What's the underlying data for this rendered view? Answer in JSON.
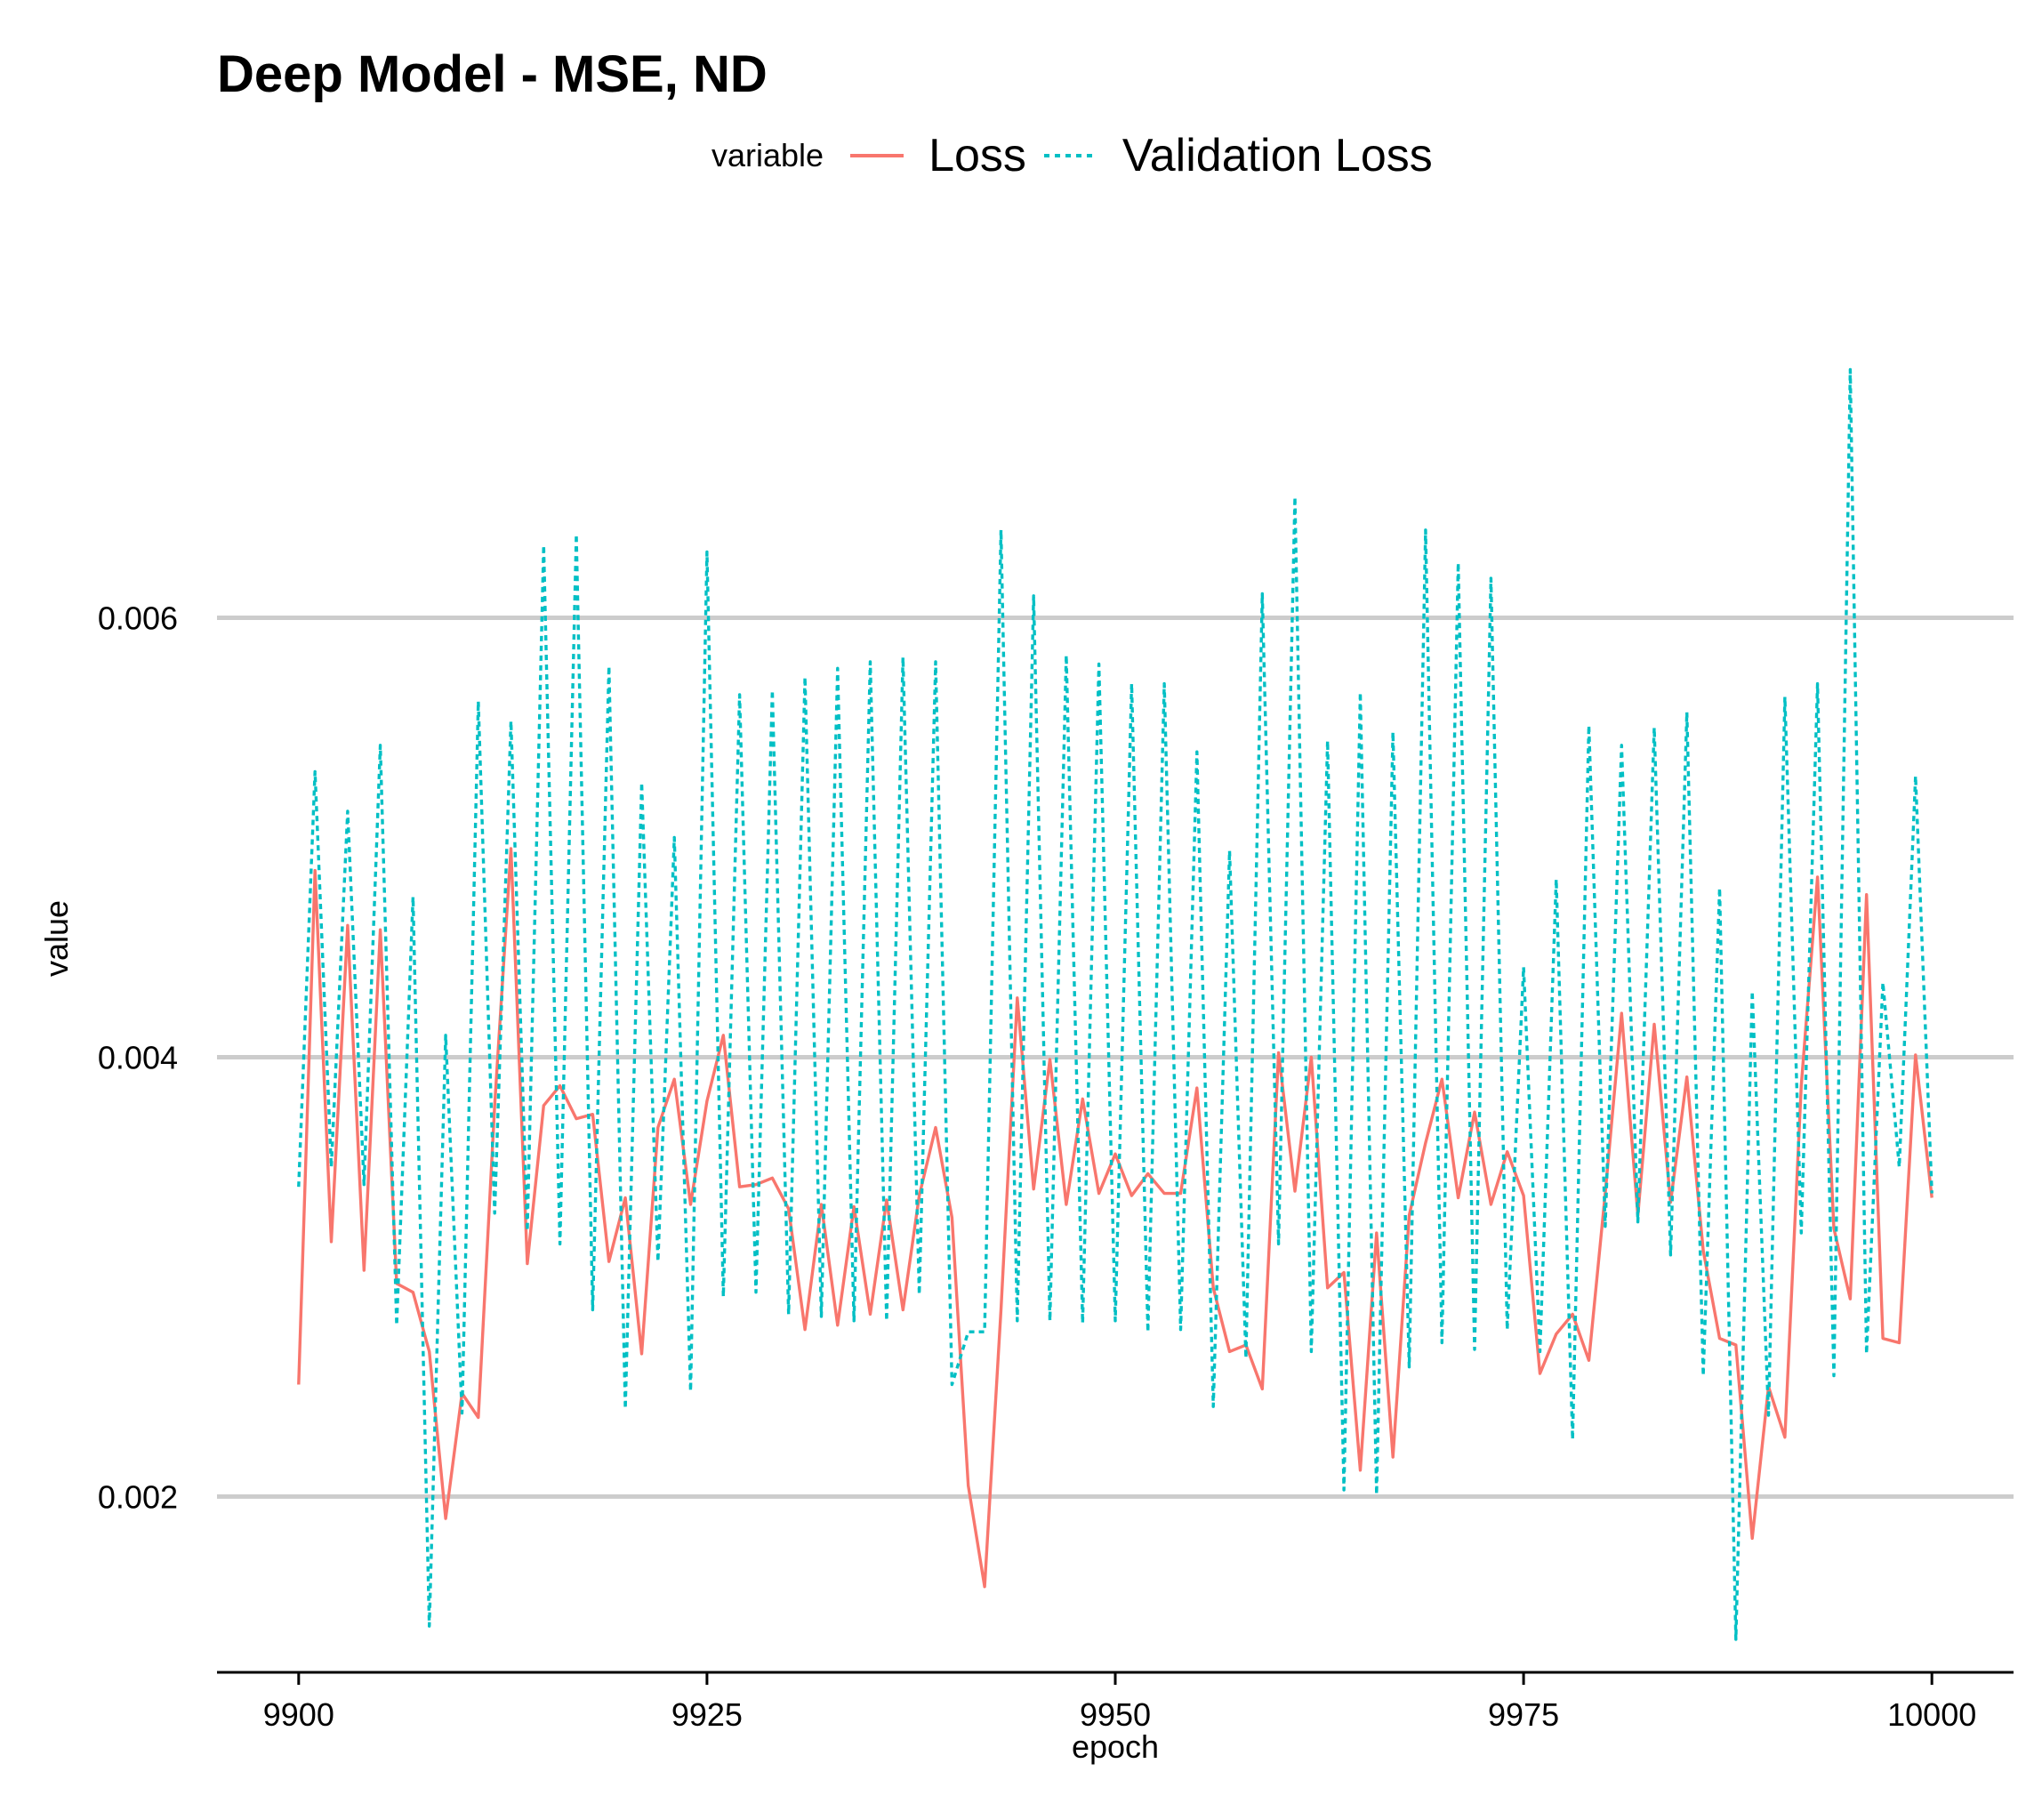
{
  "chart_data": {
    "type": "line",
    "title": "Deep Model - MSE, ND",
    "xlabel": "epoch",
    "ylabel": "value",
    "xlim": [
      9895,
      10005
    ],
    "ylim": [
      0.0012,
      0.0078
    ],
    "xticks": [
      9900,
      9925,
      9950,
      9975,
      10000
    ],
    "xtick_labels": [
      "9900",
      "9925",
      "9950",
      "9975",
      "10000"
    ],
    "yticks": [
      0.002,
      0.004,
      0.006
    ],
    "ytick_labels": [
      "0.002",
      "0.004",
      "0.006"
    ],
    "grid": "horizontal major",
    "legend": {
      "position": "top",
      "title": "variable",
      "entries": [
        "Loss",
        "Validation Loss"
      ]
    },
    "colors": {
      "Loss": "#f8766d",
      "Validation Loss": "#00bfc4",
      "grid": "#cccccc",
      "axis": "#000000"
    },
    "x": [
      9900,
      9901,
      9902,
      9903,
      9904,
      9905,
      9906,
      9907,
      9908,
      9909,
      9910,
      9911,
      9912,
      9913,
      9914,
      9915,
      9916,
      9917,
      9918,
      9919,
      9920,
      9921,
      9922,
      9923,
      9924,
      9925,
      9926,
      9927,
      9928,
      9929,
      9930,
      9931,
      9932,
      9933,
      9934,
      9935,
      9936,
      9937,
      9938,
      9939,
      9940,
      9941,
      9942,
      9943,
      9944,
      9945,
      9946,
      9947,
      9948,
      9949,
      9950,
      9951,
      9952,
      9953,
      9954,
      9955,
      9956,
      9957,
      9958,
      9959,
      9960,
      9961,
      9962,
      9963,
      9964,
      9965,
      9966,
      9967,
      9968,
      9969,
      9970,
      9971,
      9972,
      9973,
      9974,
      9975,
      9976,
      9977,
      9978,
      9979,
      9980,
      9981,
      9982,
      9983,
      9984,
      9985,
      9986,
      9987,
      9988,
      9989,
      9990,
      9991,
      9992,
      9993,
      9994,
      9995,
      9996,
      9997,
      9998,
      9999,
      10000
    ],
    "series": [
      {
        "name": "Loss",
        "line_style": "solid",
        "values": [
          0.00251,
          0.00485,
          0.00316,
          0.0046,
          0.00303,
          0.00458,
          0.00297,
          0.00293,
          0.00266,
          0.0019,
          0.00247,
          0.00236,
          0.00378,
          0.00495,
          0.00306,
          0.00378,
          0.00387,
          0.00372,
          0.00374,
          0.00307,
          0.00336,
          0.00265,
          0.00368,
          0.0039,
          0.00333,
          0.0038,
          0.0041,
          0.00341,
          0.00342,
          0.00345,
          0.00331,
          0.00276,
          0.00333,
          0.00278,
          0.00332,
          0.00283,
          0.00335,
          0.00285,
          0.00337,
          0.00368,
          0.00327,
          0.00205,
          0.00159,
          0.00285,
          0.00427,
          0.0034,
          0.00399,
          0.00333,
          0.00381,
          0.00338,
          0.00356,
          0.00337,
          0.00347,
          0.00338,
          0.00338,
          0.00386,
          0.00295,
          0.00266,
          0.00269,
          0.00249,
          0.00402,
          0.00339,
          0.004,
          0.00295,
          0.00302,
          0.00212,
          0.0032,
          0.00218,
          0.00328,
          0.00361,
          0.0039,
          0.00336,
          0.00375,
          0.00333,
          0.00357,
          0.00337,
          0.00256,
          0.00274,
          0.00283,
          0.00262,
          0.00338,
          0.0042,
          0.00328,
          0.00415,
          0.00334,
          0.00391,
          0.00312,
          0.00272,
          0.00269,
          0.00181,
          0.0025,
          0.00227,
          0.00387,
          0.00482,
          0.00322,
          0.0029,
          0.00474,
          0.00272,
          0.0027,
          0.00401,
          0.00336
        ]
      },
      {
        "name": "Validation Loss",
        "line_style": "dotted",
        "values": [
          0.00341,
          0.0053,
          0.0035,
          0.00512,
          0.00342,
          0.00542,
          0.00278,
          0.00473,
          0.00141,
          0.0041,
          0.00238,
          0.00562,
          0.00329,
          0.00553,
          0.00321,
          0.00633,
          0.00315,
          0.00638,
          0.00285,
          0.00578,
          0.0024,
          0.00525,
          0.00307,
          0.005,
          0.00248,
          0.0063,
          0.00291,
          0.00565,
          0.00293,
          0.00567,
          0.00283,
          0.00573,
          0.00282,
          0.00577,
          0.0028,
          0.0058,
          0.0028,
          0.00582,
          0.00292,
          0.0058,
          0.00251,
          0.00275,
          0.00275,
          0.0064,
          0.0028,
          0.0061,
          0.0028,
          0.00583,
          0.00279,
          0.00579,
          0.0028,
          0.0057,
          0.00275,
          0.0057,
          0.00276,
          0.00539,
          0.00241,
          0.00494,
          0.00263,
          0.00611,
          0.00315,
          0.00655,
          0.00266,
          0.00544,
          0.00203,
          0.00566,
          0.00201,
          0.00548,
          0.00259,
          0.0064,
          0.0027,
          0.00625,
          0.00267,
          0.00618,
          0.00276,
          0.00441,
          0.00266,
          0.00481,
          0.00226,
          0.00551,
          0.00323,
          0.00542,
          0.00325,
          0.0055,
          0.0031,
          0.00557,
          0.00255,
          0.00477,
          0.00135,
          0.0043,
          0.00237,
          0.00564,
          0.0032,
          0.0057,
          0.00255,
          0.00713,
          0.00265,
          0.00434,
          0.0035,
          0.00528,
          0.00338
        ]
      }
    ]
  }
}
